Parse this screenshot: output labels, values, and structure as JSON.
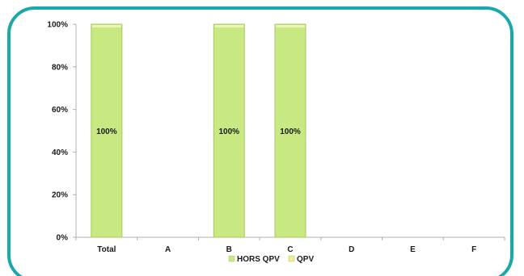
{
  "chart_data": {
    "type": "bar",
    "stacked": true,
    "categories": [
      "Total",
      "A",
      "B",
      "C",
      "D",
      "E",
      "F"
    ],
    "series": [
      {
        "name": "HORS QPV",
        "color": "#c8e882",
        "values": [
          100,
          0,
          100,
          100,
          0,
          0,
          0
        ]
      },
      {
        "name": "QPV",
        "color": "#f2ec9a",
        "values": [
          0,
          0,
          0,
          0,
          0,
          0,
          0
        ]
      }
    ],
    "data_labels": [
      "100%",
      "",
      "100%",
      "100%",
      "",
      "",
      ""
    ],
    "y_ticks": [
      "0%",
      "20%",
      "40%",
      "60%",
      "80%",
      "100%"
    ],
    "ylim": [
      0,
      100
    ],
    "y_unit": "percent",
    "legend_position": "bottom",
    "grid": false,
    "title": "",
    "xlabel": "",
    "ylabel": ""
  },
  "colors": {
    "frame_border": "#1aa8a8",
    "axis": "#b0b0b0",
    "bar_edge": "#a8c860"
  }
}
